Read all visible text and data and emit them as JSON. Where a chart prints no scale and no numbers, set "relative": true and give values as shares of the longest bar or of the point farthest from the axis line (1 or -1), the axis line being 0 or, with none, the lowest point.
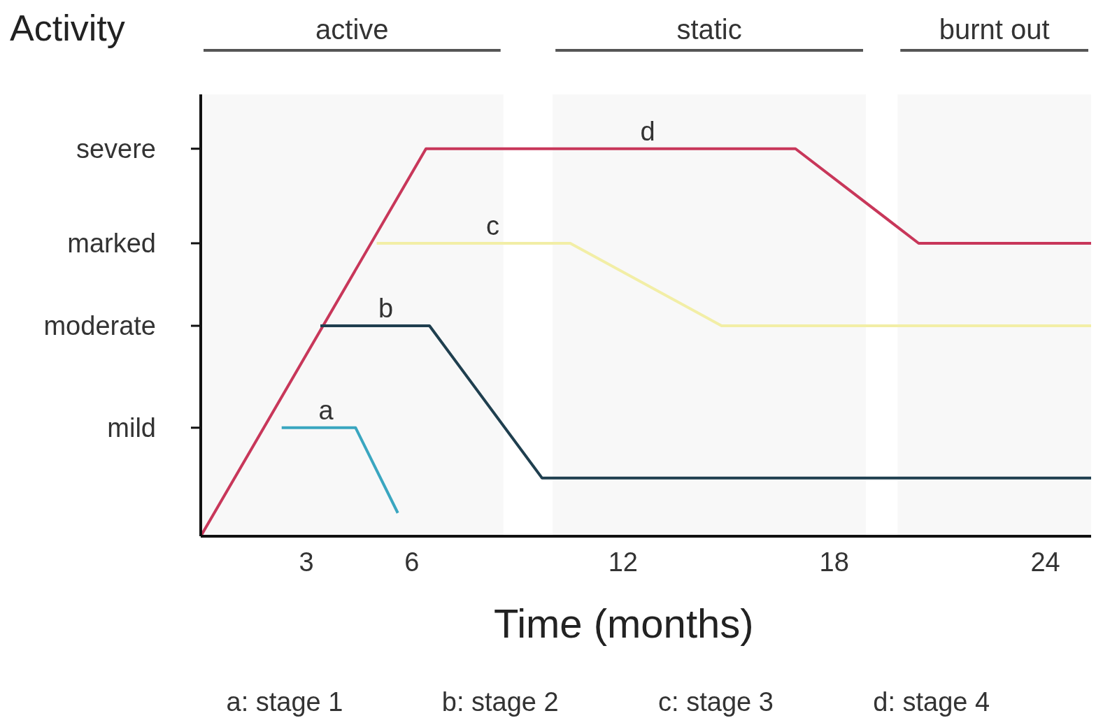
{
  "chart_data": {
    "type": "line",
    "ylabel": "Activity",
    "xlabel": "Time (months)",
    "relative": true,
    "xlim": [
      0,
      25.3
    ],
    "xticks": [
      3,
      6,
      12,
      18,
      24
    ],
    "legend": false,
    "marker": "none",
    "line_style": "solid",
    "series": [
      {
        "name": "d",
        "color": "#c8375a",
        "x": [
          0,
          6.4,
          16.9,
          20.4,
          25.3
        ],
        "values": [
          0,
          1,
          1,
          0.756,
          0.756
        ]
      },
      {
        "name": "c",
        "color": "#f2eea6",
        "x": [
          5,
          10.5,
          14.8,
          25.3
        ],
        "values": [
          0.756,
          0.756,
          0.543,
          0.543
        ]
      },
      {
        "name": "b",
        "color": "#1f3f4f",
        "x": [
          3.4,
          6.5,
          9.7,
          25.3
        ],
        "values": [
          0.543,
          0.543,
          0.15,
          0.15
        ]
      },
      {
        "name": "a",
        "color": "#3aa6c0",
        "x": [
          2.3,
          4.4,
          5.6
        ],
        "values": [
          0.28,
          0.28,
          0.06
        ]
      }
    ],
    "bands": [
      {
        "axis": "x",
        "from": 0,
        "to": 8.6,
        "label": "active",
        "color": "#555555"
      },
      {
        "axis": "x",
        "from": 10,
        "to": 18.9,
        "label": "static",
        "color": "#555555"
      },
      {
        "axis": "x",
        "from": 19.8,
        "to": 25.3,
        "label": "burnt out",
        "color": "#555555"
      }
    ],
    "ref_lines": [
      {
        "axis": "y",
        "value": 0.28,
        "label": "mild"
      },
      {
        "axis": "y",
        "value": 0.543,
        "label": "moderate"
      },
      {
        "axis": "y",
        "value": 0.756,
        "label": "marked"
      },
      {
        "axis": "y",
        "value": 1,
        "label": "severe"
      }
    ],
    "annotations": [
      "a: stage 1",
      "b: stage 2",
      "c: stage 3",
      "d: stage 4"
    ]
  }
}
